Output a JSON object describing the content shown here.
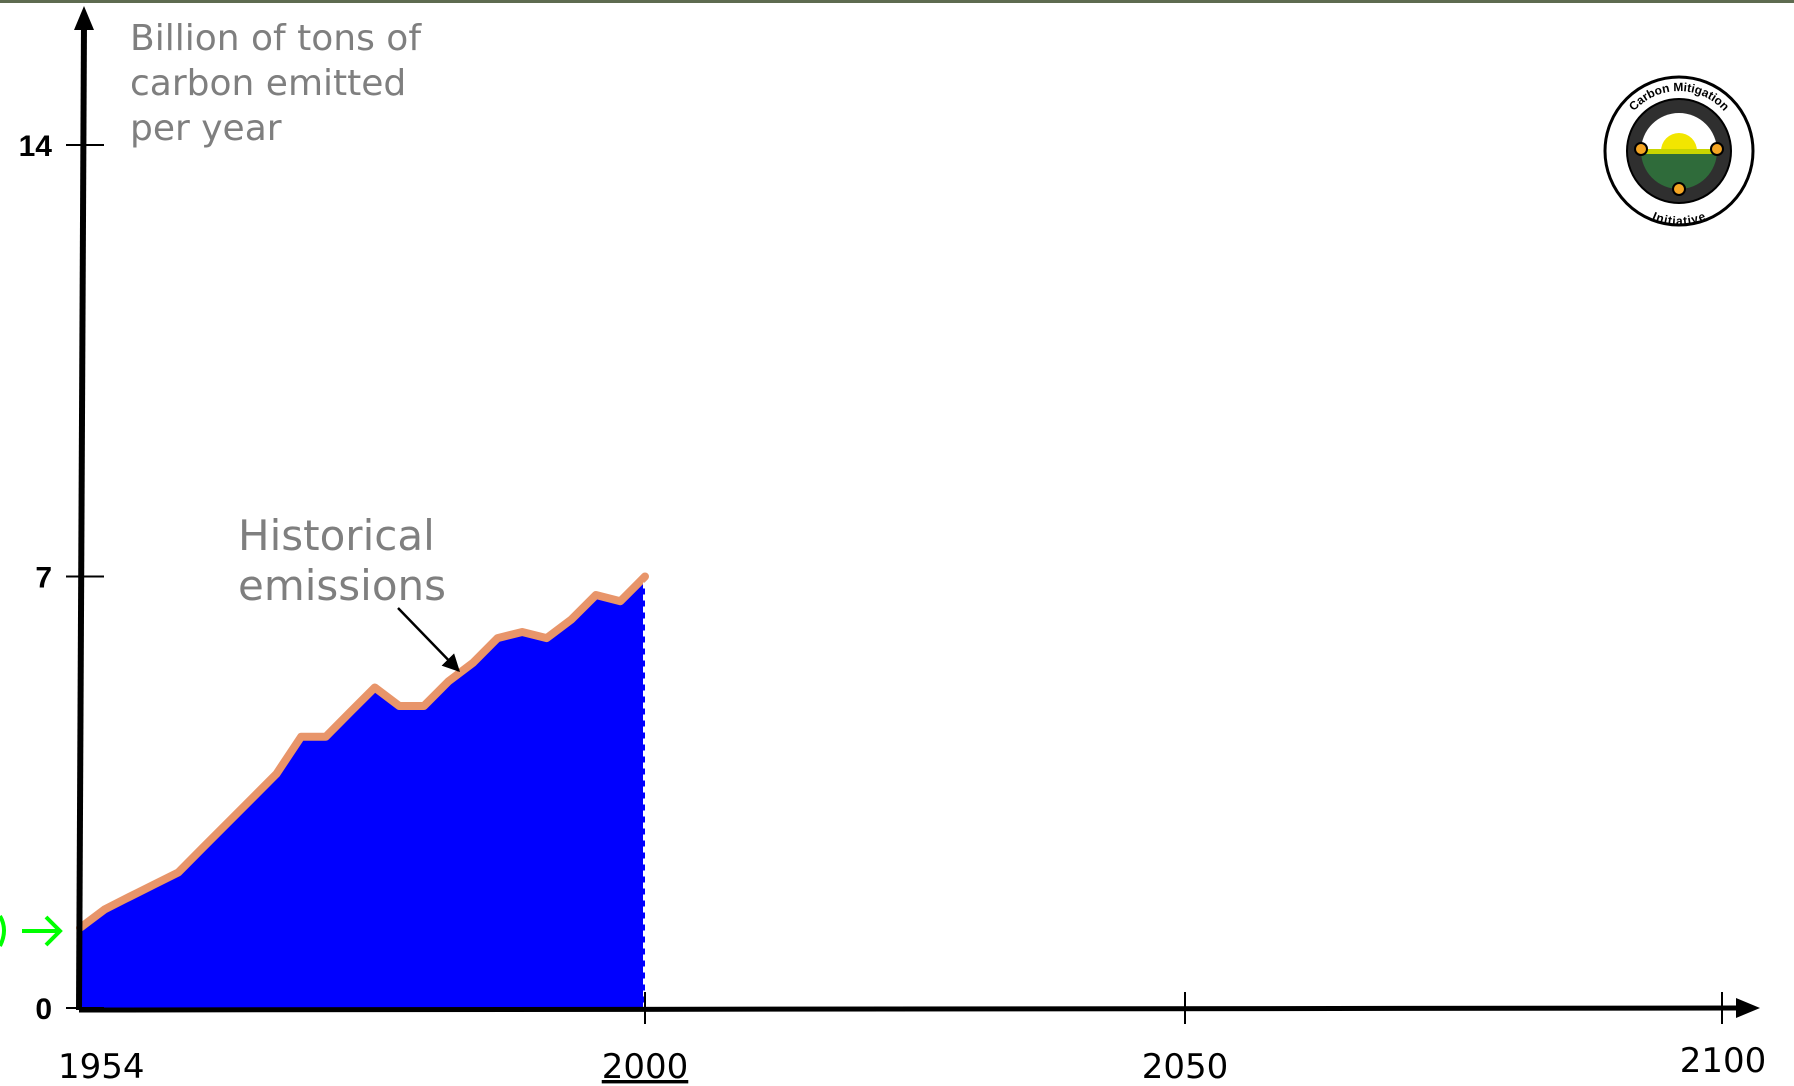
{
  "chart_data": {
    "type": "area",
    "ylabel": "Billion of tons of carbon emitted per year",
    "ylabel_lines": [
      "Billion of tons of",
      "carbon emitted",
      "per year"
    ],
    "yticks": [
      0,
      7,
      14
    ],
    "yticks_labels": [
      "0",
      "7",
      "14"
    ],
    "xticks": [
      1954,
      2000,
      2050,
      2100
    ],
    "xticks_labels": [
      "1954",
      "2000",
      "2050",
      "2100"
    ],
    "xlim": [
      1954,
      2109
    ],
    "ylim": [
      0,
      16
    ],
    "grid": false,
    "series": [
      {
        "name": "Historical emissions",
        "fill_color": "#0000ff",
        "line_color": "#e8956a",
        "x": [
          1954,
          1956,
          1958,
          1960,
          1962,
          1964,
          1966,
          1968,
          1970,
          1972,
          1974,
          1976,
          1978,
          1980,
          1982,
          1984,
          1986,
          1988,
          1990,
          1992,
          1994,
          1996,
          1998,
          2000
        ],
        "y": [
          1.3,
          1.6,
          1.8,
          2.0,
          2.2,
          2.6,
          3.0,
          3.4,
          3.8,
          4.4,
          4.4,
          4.8,
          5.2,
          4.9,
          4.9,
          5.3,
          5.6,
          6.0,
          6.1,
          6.0,
          6.3,
          6.7,
          6.6,
          7.0
        ]
      }
    ],
    "annotations": [
      {
        "text_lines": [
          "Historical",
          "emissions"
        ],
        "arrow_to": {
          "x": 1985,
          "y": 5.6
        }
      }
    ],
    "markers": [
      {
        "color": "#00ff00",
        "points_to": {
          "x": 1954,
          "y": 1.3
        }
      }
    ]
  },
  "logo": {
    "top_text": "Carbon Mitigation",
    "bottom_text": "Initiative"
  }
}
